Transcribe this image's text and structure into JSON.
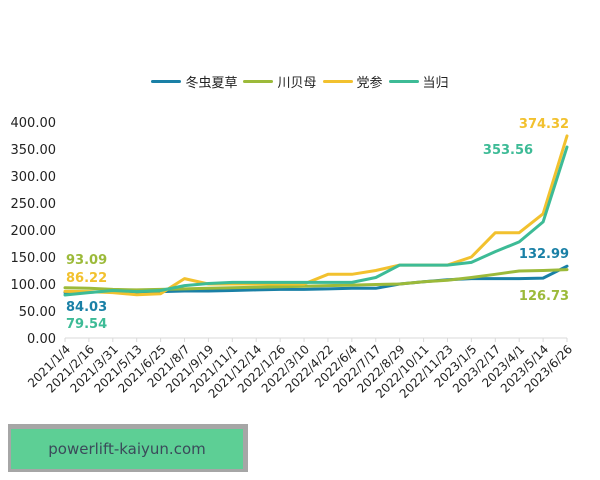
{
  "chart_data": {
    "type": "line",
    "title": "",
    "xlabel": "",
    "ylabel": "",
    "ylim": [
      0,
      400
    ],
    "y_ticks": [
      "0.00",
      "50.00",
      "100.00",
      "150.00",
      "200.00",
      "250.00",
      "300.00",
      "350.00",
      "400.00"
    ],
    "grid": false,
    "legend_position": "top",
    "categories": [
      "2021/1/4",
      "2021/2/16",
      "2021/3/31",
      "2021/5/13",
      "2021/6/25",
      "2021/8/7",
      "2021/9/19",
      "2021/11/1",
      "2021/12/14",
      "2022/1/26",
      "2022/3/10",
      "2022/4/22",
      "2022/6/4",
      "2022/7/17",
      "2022/8/29",
      "2022/10/11",
      "2022/11/23",
      "2023/1/5",
      "2023/2/17",
      "2023/4/1",
      "2023/5/14",
      "2023/6/26"
    ],
    "series": [
      {
        "name": "冬虫夏草",
        "color": "#1a80a6",
        "values": [
          84.03,
          85,
          86,
          85,
          86,
          87,
          87,
          88,
          89,
          90,
          90,
          91,
          92,
          92,
          100,
          104,
          108,
          110,
          110,
          110,
          111,
          132.99
        ]
      },
      {
        "name": "川贝母",
        "color": "#9cba3a",
        "values": [
          93.09,
          92,
          90,
          89,
          90,
          91,
          92,
          93,
          94,
          95,
          96,
          97,
          98,
          99,
          100,
          104,
          107,
          112,
          118,
          124,
          125,
          126.73
        ]
      },
      {
        "name": "党参",
        "color": "#f2c12e",
        "values": [
          86.22,
          86,
          84,
          80,
          82,
          110,
          100,
          100,
          100,
          100,
          100,
          118,
          118,
          125,
          135,
          135,
          135,
          150,
          195,
          195,
          230,
          374.32
        ]
      },
      {
        "name": "当归",
        "color": "#3dbb96",
        "values": [
          79.54,
          84,
          88,
          86,
          88,
          97,
          101,
          103,
          103,
          103,
          103,
          103,
          103,
          112,
          135,
          135,
          135,
          140,
          160,
          178,
          215,
          353.56
        ]
      }
    ],
    "annotations": [
      {
        "text": "93.09",
        "series": "川贝母"
      },
      {
        "text": "86.22",
        "series": "党参"
      },
      {
        "text": "84.03",
        "series": "冬虫夏草"
      },
      {
        "text": "79.54",
        "series": "当归"
      },
      {
        "text": "374.32",
        "series": "党参"
      },
      {
        "text": "353.56",
        "series": "当归"
      },
      {
        "text": "132.99",
        "series": "冬虫夏草"
      },
      {
        "text": "126.73",
        "series": "川贝母"
      }
    ]
  },
  "legend": [
    {
      "label": "冬虫夏草",
      "color": "#1a80a6"
    },
    {
      "label": "川贝母",
      "color": "#9cba3a"
    },
    {
      "label": "党参",
      "color": "#f2c12e"
    },
    {
      "label": "当归",
      "color": "#3dbb96"
    }
  ],
  "watermark": {
    "text": "powerlift-kaiyun.com"
  }
}
